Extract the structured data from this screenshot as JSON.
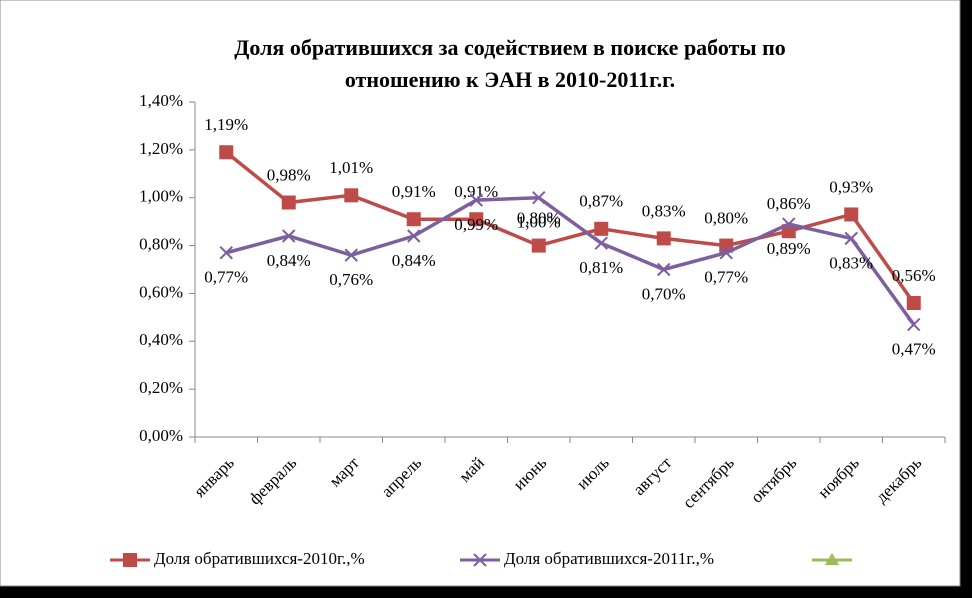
{
  "chart_data": {
    "type": "line",
    "title": [
      "Доля обратившихся за содействием в поиске работы по",
      "отношению к ЭАН в 2010-2011г.г."
    ],
    "categories": [
      "январь",
      "февраль",
      "март",
      "апрель",
      "май",
      "июнь",
      "июль",
      "август",
      "сентябрь",
      "октябрь",
      "ноябрь",
      "декабрь"
    ],
    "series": [
      {
        "name": "Доля обратившихся-2010г.,%",
        "color": "#be4b48",
        "values": [
          1.19,
          0.98,
          1.01,
          0.91,
          0.91,
          0.8,
          0.87,
          0.83,
          0.8,
          0.86,
          0.93,
          0.56
        ],
        "value_labels": [
          "1,19%",
          "0,98%",
          "1,01%",
          "0,91%",
          "0,91%",
          "0,80%",
          "0,87%",
          "0,83%",
          "0,80%",
          "0,86%",
          "0,93%",
          "0,56%"
        ]
      },
      {
        "name": "Доля обратившихся-2011г.,%",
        "color": "#7d5fa0",
        "values": [
          0.77,
          0.84,
          0.76,
          0.84,
          0.99,
          1.0,
          0.81,
          0.7,
          0.77,
          0.89,
          0.83,
          0.47
        ],
        "value_labels": [
          "0,77%",
          "0,84%",
          "0,76%",
          "0,84%",
          "0,99%",
          "1,00%",
          "0,81%",
          "0,70%",
          "0,77%",
          "0,89%",
          "0,83%",
          "0,47%"
        ]
      }
    ],
    "ylim": [
      0,
      1.4
    ],
    "yticks": [
      {
        "value": 0,
        "label": "0,00%"
      },
      {
        "value": 0.2,
        "label": "0,20%"
      },
      {
        "value": 0.4,
        "label": "0,40%"
      },
      {
        "value": 0.6,
        "label": "0,60%"
      },
      {
        "value": 0.8,
        "label": "0,80%"
      },
      {
        "value": 1.0,
        "label": "1,00%"
      },
      {
        "value": 1.2,
        "label": "1,20%"
      },
      {
        "value": 1.4,
        "label": "1,40%"
      }
    ],
    "grid": false
  }
}
